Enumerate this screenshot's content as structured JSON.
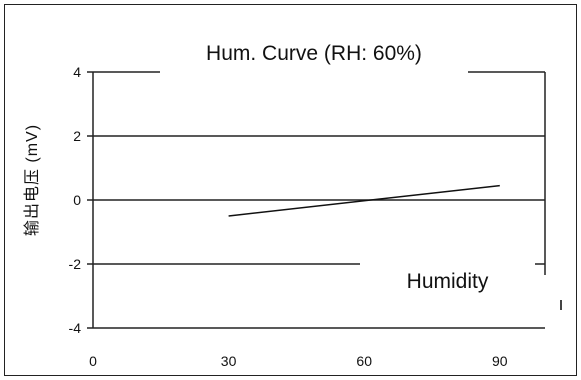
{
  "chart_data": {
    "type": "line",
    "title": "Hum. Curve (RH: 60%)",
    "xlabel": "Humidity",
    "ylabel": "输出电压 (mV)",
    "xlim": [
      0,
      100
    ],
    "ylim": [
      -4,
      4
    ],
    "xticks": [
      0,
      30,
      60,
      90
    ],
    "yticks": [
      4,
      2,
      0,
      -2,
      -4
    ],
    "grid": "horizontal at 2, 0, -2",
    "series": [
      {
        "x": [
          30,
          90
        ],
        "y": [
          -0.5,
          0.45
        ]
      }
    ]
  },
  "colors": {
    "line": "#111111",
    "axis": "#222222"
  }
}
